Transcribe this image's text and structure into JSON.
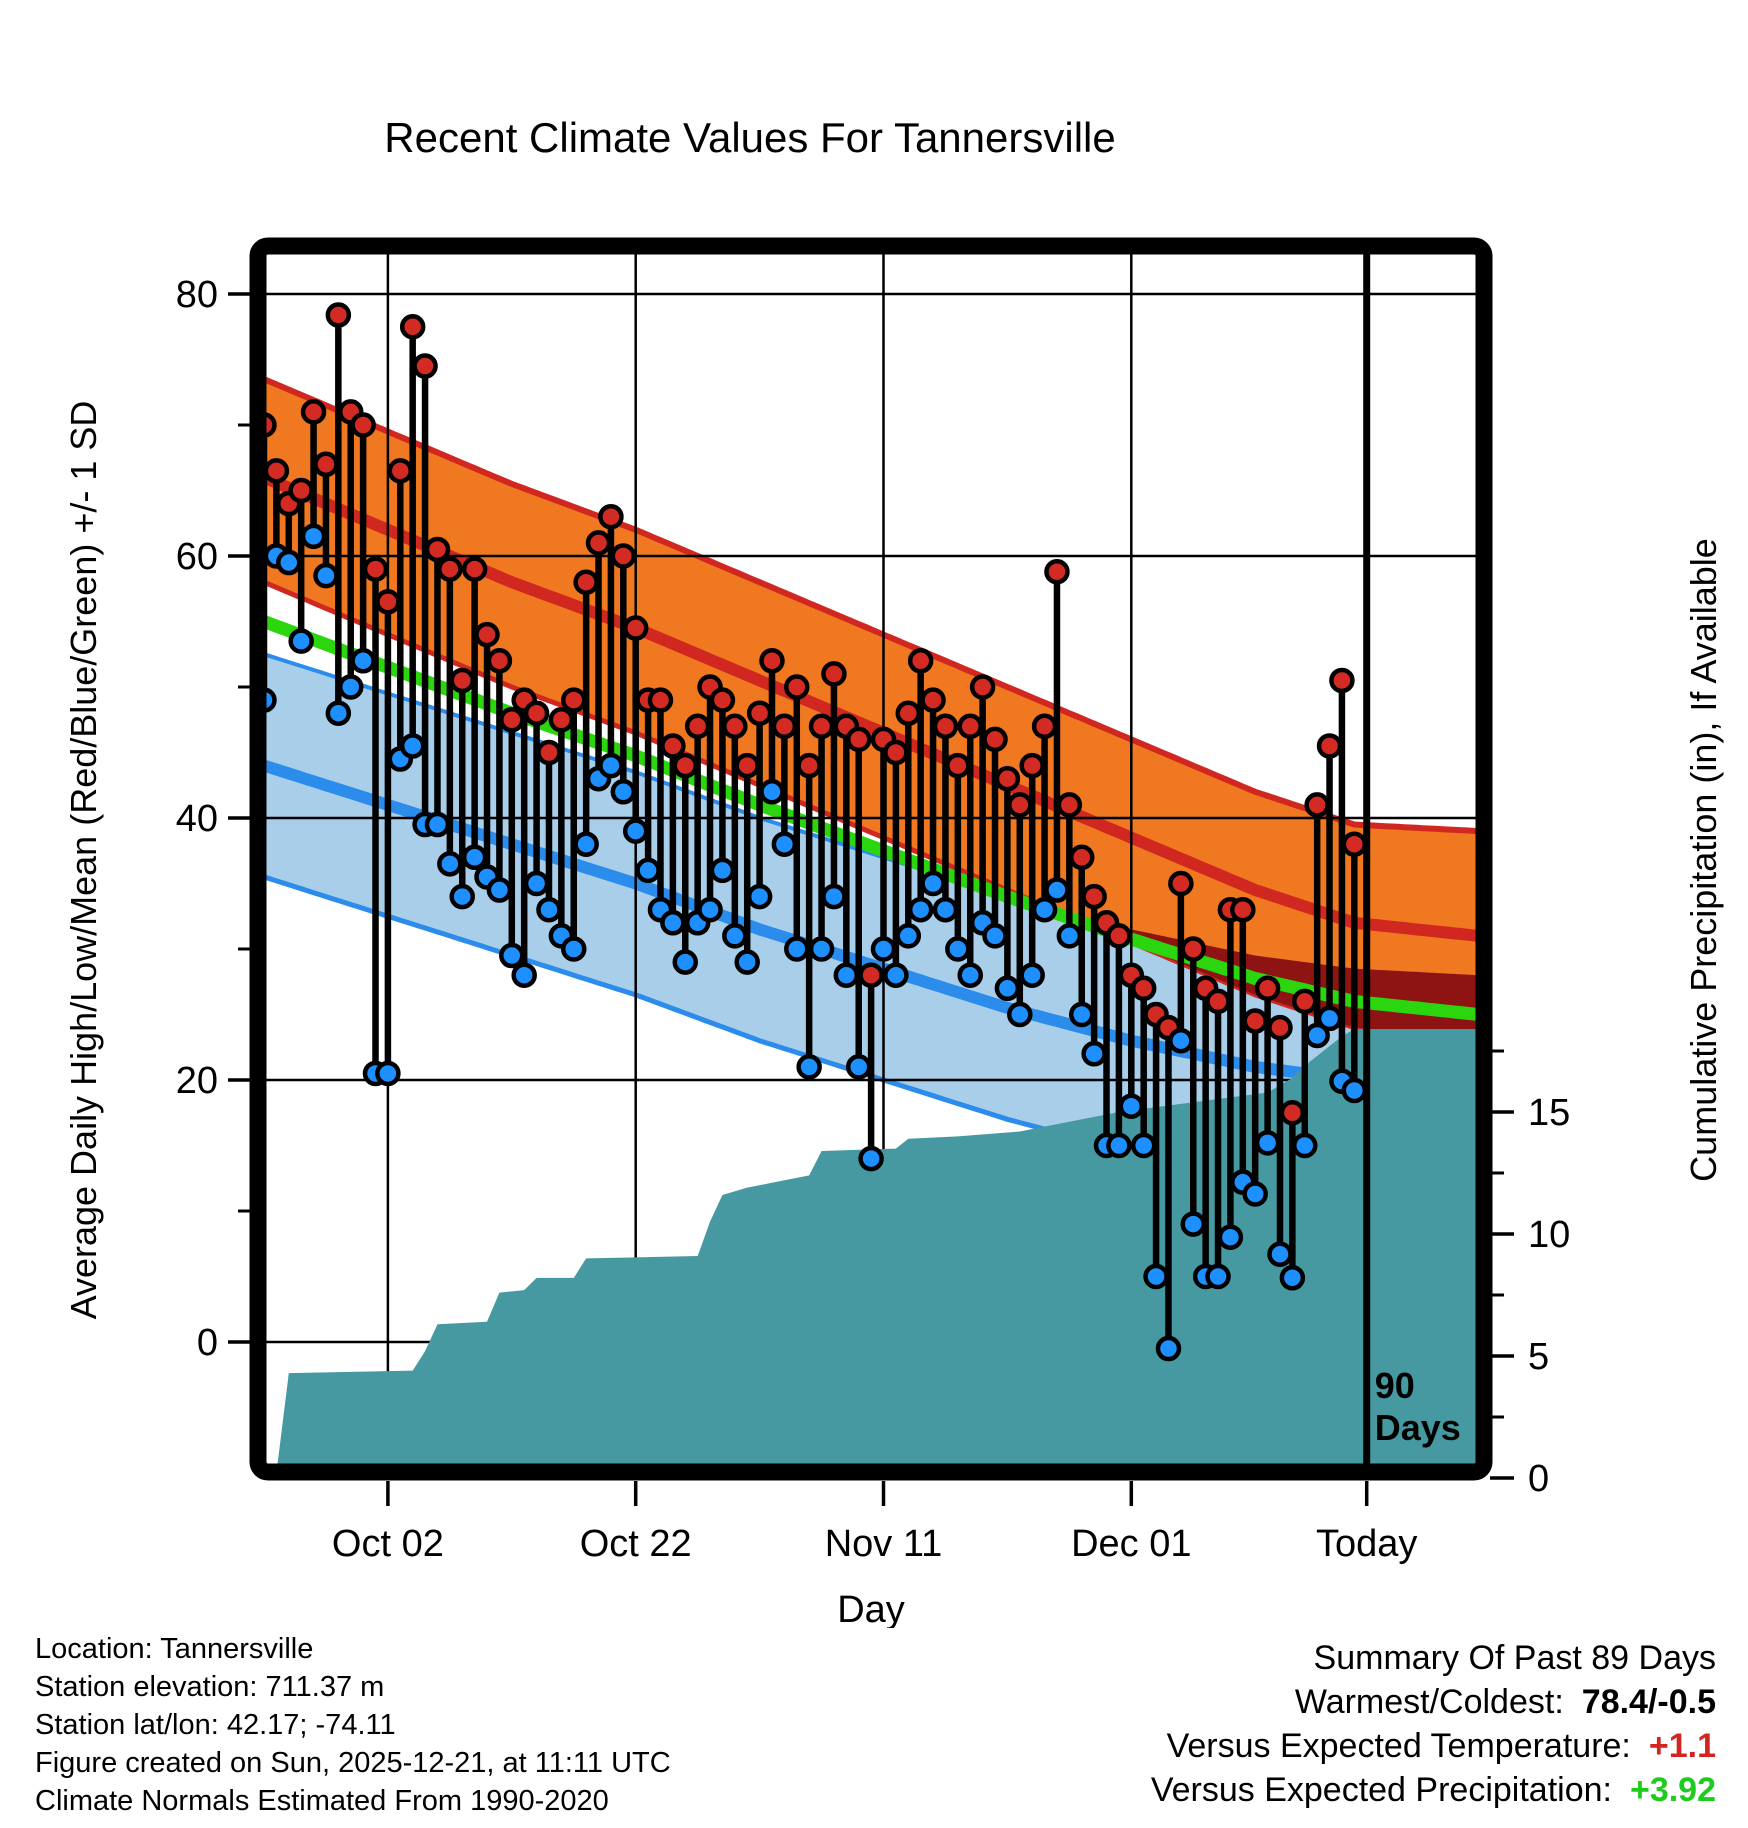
{
  "title": "Recent Climate Values For Tannersville",
  "colors": {
    "orange_band": "#F07820",
    "red_line": "#D02820",
    "maroon_overlap": "#8E1414",
    "green_mean": "#2BD60F",
    "light_blue_band": "#A8CEE9",
    "blue_line": "#2B8CEB",
    "dot_red": "#D32B24",
    "dot_blue": "#1E8FFF",
    "teal_precip": "#4799A1",
    "stem_black": "#000000",
    "summary_temp_red": "#D42420",
    "summary_precip_green": "#1ECC1E"
  },
  "chart_data": {
    "type": "line",
    "title": "Recent Climate Values For Tannersville",
    "xlabel": "Day",
    "ylabel_left": "Average Daily High/Low/Mean (Red/Blue/Green) +/- 1 SD",
    "ylabel_right": "Cumulative Precipitation (in), If Available",
    "x_ticks": [
      {
        "day": 11,
        "label": "Oct 02"
      },
      {
        "day": 31,
        "label": "Oct 22"
      },
      {
        "day": 51,
        "label": "Nov 11"
      },
      {
        "day": 71,
        "label": "Dec 01"
      },
      {
        "day": 90,
        "label": "Today"
      }
    ],
    "y_left_axis": {
      "major_ticks": [
        80,
        60,
        40,
        20,
        0
      ],
      "minor_ticks": [
        70,
        50,
        30,
        10
      ],
      "range_shown": [
        -10,
        83
      ]
    },
    "y_right_axis": {
      "major_ticks": [
        15,
        10,
        5,
        0
      ],
      "minor_ticks": [
        17.5,
        12.5,
        7.5,
        2.5
      ],
      "range_shown": [
        0,
        20
      ]
    },
    "n_days": 89,
    "today_marker_day": 90,
    "annotation_90days": {
      "line1": "90",
      "line2": "Days"
    },
    "daily_high": [
      70,
      66.5,
      64,
      65,
      71,
      67,
      78.4,
      71,
      70,
      59,
      56.5,
      66.5,
      77.5,
      74.5,
      60.5,
      59,
      50.5,
      59,
      54,
      52,
      47.5,
      49,
      48,
      45,
      47.5,
      49,
      58,
      61,
      63,
      60,
      54.5,
      49,
      49,
      45.5,
      44,
      47,
      50,
      49,
      47,
      44,
      48,
      52,
      47,
      50,
      44,
      47,
      51,
      47,
      46,
      28,
      46,
      45,
      48,
      52,
      49,
      47,
      44,
      47,
      50,
      46,
      43,
      41,
      44,
      47,
      58.8,
      41,
      37,
      34,
      32,
      31,
      28,
      27,
      25,
      24,
      35,
      30,
      27,
      26,
      33,
      33,
      24.5,
      27,
      24,
      17.5,
      26,
      41,
      45.5,
      50.5,
      38
    ],
    "daily_low": [
      49,
      60,
      59.5,
      53.5,
      61.5,
      58.5,
      48,
      50,
      52,
      20.5,
      20.5,
      44.5,
      45.5,
      39.5,
      39.5,
      36.5,
      34,
      37,
      35.5,
      34.5,
      29.5,
      28,
      35,
      33,
      31,
      30,
      38,
      43,
      44,
      42,
      39,
      36,
      33,
      32,
      29,
      32,
      33,
      36,
      31,
      29,
      34,
      42,
      38,
      30,
      21,
      30,
      34,
      28,
      21,
      14,
      30,
      28,
      31,
      33,
      35,
      33,
      30,
      28,
      32,
      31,
      27,
      25,
      28,
      33,
      34.5,
      31,
      25,
      22,
      15,
      15,
      18,
      15,
      5,
      -0.5,
      23,
      9,
      5,
      5,
      8,
      12.2,
      11.3,
      15.2,
      6.7,
      4.9,
      15,
      23.4,
      24.7,
      19.9,
      19.2
    ],
    "normals": {
      "anchor_days": [
        1,
        11,
        21,
        31,
        41,
        51,
        61,
        71,
        81,
        89,
        99
      ],
      "high_upper": [
        73.5,
        69.5,
        65.5,
        62,
        58,
        54,
        50,
        46,
        42,
        39.5,
        39
      ],
      "high_mean": [
        66,
        62,
        58,
        54.5,
        50.5,
        46.5,
        42.5,
        38.5,
        34.5,
        32,
        31
      ],
      "high_lower": [
        58,
        54,
        50,
        46.5,
        42.5,
        38.5,
        34.5,
        30.5,
        26.5,
        24,
        23
      ],
      "mean_green": [
        55,
        51.5,
        48,
        44.75,
        41,
        37.5,
        34,
        30.75,
        27.75,
        26,
        25
      ],
      "low_upper": [
        52.5,
        49.5,
        46.5,
        43.5,
        40,
        37,
        34,
        31.5,
        29.5,
        28.5,
        28
      ],
      "low_mean": [
        44,
        41,
        38,
        35,
        31.5,
        28.5,
        25.5,
        23,
        21,
        20,
        19
      ],
      "low_lower": [
        35.5,
        32.5,
        29.5,
        26.5,
        23,
        20,
        17,
        14.5,
        12.5,
        11.5,
        10.5
      ]
    },
    "cumulative_precip_steps": [
      [
        1,
        0
      ],
      [
        2,
        0.2
      ],
      [
        3,
        4.3
      ],
      [
        13,
        4.4
      ],
      [
        14,
        5.2
      ],
      [
        15,
        6.3
      ],
      [
        19,
        6.4
      ],
      [
        20,
        7.6
      ],
      [
        22,
        7.7
      ],
      [
        23,
        8.2
      ],
      [
        26,
        8.2
      ],
      [
        27,
        9.0
      ],
      [
        36,
        9.1
      ],
      [
        37,
        10.5
      ],
      [
        38,
        11.6
      ],
      [
        40,
        11.9
      ],
      [
        42,
        12.1
      ],
      [
        45,
        12.4
      ],
      [
        46,
        13.4
      ],
      [
        52,
        13.5
      ],
      [
        53,
        13.9
      ],
      [
        57,
        14.0
      ],
      [
        62,
        14.2
      ],
      [
        66,
        14.6
      ],
      [
        70,
        15.0
      ],
      [
        73,
        15.2
      ],
      [
        76,
        15.4
      ],
      [
        79,
        15.6
      ],
      [
        82,
        15.8
      ],
      [
        83,
        16.1
      ],
      [
        84,
        16.4
      ],
      [
        85,
        16.9
      ],
      [
        86,
        17.3
      ],
      [
        87,
        17.7
      ],
      [
        88,
        18.1
      ],
      [
        89,
        18.4
      ]
    ]
  },
  "footer_left": {
    "line1": "Location: Tannersville",
    "line2": "Station elevation: 711.37 m",
    "line3": "Station lat/lon: 42.17; -74.11",
    "line4": "Figure created on Sun, 2025-12-21, at 11:11 UTC",
    "line5": "Climate Normals Estimated From 1990-2020"
  },
  "summary": {
    "title": "Summary Of Past 89 Days",
    "row1_label": "Warmest/Coldest:",
    "row1_value": "78.4/-0.5",
    "row2_label": "Versus Expected Temperature:",
    "row2_value": "+1.1",
    "row3_label": "Versus Expected Precipitation:",
    "row3_value": "+3.92"
  }
}
